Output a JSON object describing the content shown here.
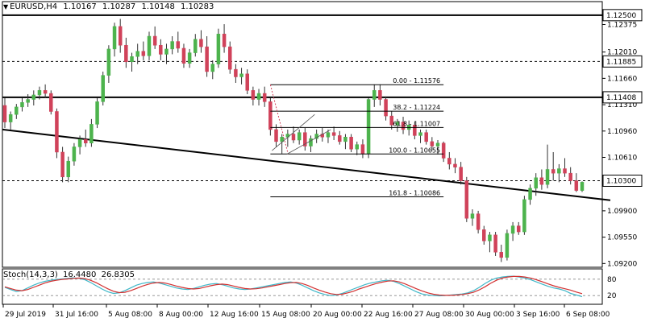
{
  "header": {
    "symbol": "EURUSD,H4",
    "open": "1.10167",
    "high": "1.10287",
    "low": "1.10148",
    "close": "1.10283"
  },
  "stochastic": {
    "name": "Stoch(14,3,3)",
    "main": "16.4480",
    "signal": "26.8305"
  },
  "colors": {
    "bull": "#4db34d",
    "bear": "#d0425a",
    "wick": "#333333",
    "stoch_main": "#3fb7c8",
    "stoch_signal": "#d23030",
    "trend_line": "#000000"
  },
  "chart_data": [
    {
      "type": "candlestick",
      "title": "EURUSD,H4",
      "ylim": [
        1.0915,
        1.1268
      ],
      "y_ticks": [
        "1.12500",
        "1.12375",
        "1.12010",
        "1.11885",
        "1.11660",
        "1.11408",
        "1.11310",
        "1.10960",
        "1.10610",
        "1.10300",
        "1.09900",
        "1.09550",
        "1.09200"
      ],
      "x_ticks": [
        "29 Jul 2019",
        "31 Jul 16:00",
        "5 Aug 08:00",
        "8 Aug 00:00",
        "12 Aug 16:00",
        "15 Aug 08:00",
        "20 Aug 00:00",
        "22 Aug 16:00",
        "27 Aug 08:00",
        "30 Aug 00:00",
        "3 Sep 16:00",
        "6 Sep 08:00"
      ],
      "grid": false,
      "horizontal_levels": [
        {
          "price": 1.125,
          "label": "1.12500",
          "style": "solid"
        },
        {
          "price": 1.11885,
          "label": "1.11885",
          "style": "dashed"
        },
        {
          "price": 1.11408,
          "label": "1.11408",
          "style": "solid"
        },
        {
          "price": 1.103,
          "label": "1.10300",
          "style": "dashed"
        }
      ],
      "fibonacci": [
        {
          "label": "0.00 - 1.11576",
          "price": 1.11576
        },
        {
          "label": "38.2 - 1.11224",
          "price": 1.11224
        },
        {
          "label": "61.8 - 1.11007",
          "price": 1.11007
        },
        {
          "label": "100.0 - 1.10655",
          "price": 1.10655
        },
        {
          "label": "161.8 - 1.10086",
          "price": 1.10086
        }
      ],
      "trendline": {
        "from_price": 1.1098,
        "to_price": 1.1004
      },
      "candles": [
        [
          1.113,
          1.114,
          1.11,
          1.1108
        ],
        [
          1.1108,
          1.1122,
          1.1098,
          1.1118
        ],
        [
          1.1118,
          1.1132,
          1.1112,
          1.1128
        ],
        [
          1.1128,
          1.114,
          1.1122,
          1.1134
        ],
        [
          1.1134,
          1.1145,
          1.1128,
          1.1138
        ],
        [
          1.1138,
          1.115,
          1.113,
          1.1144
        ],
        [
          1.1144,
          1.1155,
          1.1138,
          1.115
        ],
        [
          1.115,
          1.1158,
          1.114,
          1.1146
        ],
        [
          1.1146,
          1.115,
          1.1118,
          1.1122
        ],
        [
          1.1122,
          1.1126,
          1.106,
          1.1068
        ],
        [
          1.1068,
          1.1075,
          1.1028,
          1.1035
        ],
        [
          1.1035,
          1.1062,
          1.1028,
          1.1056
        ],
        [
          1.1056,
          1.108,
          1.105,
          1.1075
        ],
        [
          1.1075,
          1.109,
          1.1065,
          1.1085
        ],
        [
          1.1085,
          1.1098,
          1.1075,
          1.108
        ],
        [
          1.108,
          1.1112,
          1.1075,
          1.1105
        ],
        [
          1.1105,
          1.114,
          1.11,
          1.1135
        ],
        [
          1.1135,
          1.1175,
          1.113,
          1.117
        ],
        [
          1.117,
          1.121,
          1.116,
          1.1205
        ],
        [
          1.1205,
          1.124,
          1.1195,
          1.1235
        ],
        [
          1.1235,
          1.1245,
          1.12,
          1.121
        ],
        [
          1.121,
          1.122,
          1.118,
          1.1188
        ],
        [
          1.1188,
          1.12,
          1.1175,
          1.1195
        ],
        [
          1.1195,
          1.1212,
          1.1185,
          1.1202
        ],
        [
          1.1202,
          1.1215,
          1.119,
          1.1196
        ],
        [
          1.1196,
          1.1228,
          1.119,
          1.1222
        ],
        [
          1.1222,
          1.1235,
          1.1205,
          1.121
        ],
        [
          1.121,
          1.1218,
          1.119,
          1.1198
        ],
        [
          1.1198,
          1.1212,
          1.1185,
          1.1205
        ],
        [
          1.1205,
          1.1222,
          1.1198,
          1.1215
        ],
        [
          1.1215,
          1.1228,
          1.12,
          1.1206
        ],
        [
          1.1206,
          1.1212,
          1.118,
          1.1186
        ],
        [
          1.1186,
          1.1205,
          1.118,
          1.12
        ],
        [
          1.12,
          1.1225,
          1.1195,
          1.1218
        ],
        [
          1.1218,
          1.123,
          1.12,
          1.1208
        ],
        [
          1.1208,
          1.1222,
          1.1168,
          1.1175
        ],
        [
          1.1175,
          1.119,
          1.1165,
          1.1185
        ],
        [
          1.1185,
          1.1232,
          1.118,
          1.1225
        ],
        [
          1.1225,
          1.1238,
          1.12,
          1.1208
        ],
        [
          1.1208,
          1.1215,
          1.1172,
          1.1178
        ],
        [
          1.1178,
          1.1185,
          1.116,
          1.1168
        ],
        [
          1.1168,
          1.118,
          1.1158,
          1.1172
        ],
        [
          1.1172,
          1.1178,
          1.1145,
          1.115
        ],
        [
          1.115,
          1.1155,
          1.113,
          1.1138
        ],
        [
          1.1138,
          1.1152,
          1.113,
          1.1146
        ],
        [
          1.1146,
          1.1155,
          1.1128,
          1.1135
        ],
        [
          1.1135,
          1.114,
          1.109,
          1.1098
        ],
        [
          1.1098,
          1.1105,
          1.1075,
          1.1082
        ],
        [
          1.1082,
          1.1092,
          1.1066,
          1.1088
        ],
        [
          1.1088,
          1.1098,
          1.1075,
          1.1092
        ],
        [
          1.1092,
          1.1102,
          1.108,
          1.1084
        ],
        [
          1.1084,
          1.1098,
          1.1078,
          1.1094
        ],
        [
          1.1094,
          1.11,
          1.107,
          1.1076
        ],
        [
          1.1076,
          1.109,
          1.1068,
          1.1086
        ],
        [
          1.1086,
          1.1098,
          1.108,
          1.1092
        ],
        [
          1.1092,
          1.11,
          1.1082,
          1.1088
        ],
        [
          1.1088,
          1.1098,
          1.108,
          1.1094
        ],
        [
          1.1094,
          1.1102,
          1.1084,
          1.109
        ],
        [
          1.109,
          1.1096,
          1.1078,
          1.1082
        ],
        [
          1.1082,
          1.1092,
          1.1072,
          1.1088
        ],
        [
          1.1088,
          1.1092,
          1.1068,
          1.1072
        ],
        [
          1.1072,
          1.1082,
          1.1064,
          1.1078
        ],
        [
          1.1078,
          1.1085,
          1.106,
          1.1066
        ],
        [
          1.1066,
          1.114,
          1.106,
          1.1138
        ],
        [
          1.1138,
          1.1158,
          1.1128,
          1.115
        ],
        [
          1.115,
          1.1158,
          1.113,
          1.1138
        ],
        [
          1.1138,
          1.1142,
          1.111,
          1.1116
        ],
        [
          1.1116,
          1.1122,
          1.1098,
          1.1104
        ],
        [
          1.1104,
          1.1112,
          1.1095,
          1.1108
        ],
        [
          1.1108,
          1.1115,
          1.1092,
          1.1098
        ],
        [
          1.1098,
          1.111,
          1.109,
          1.1104
        ],
        [
          1.1104,
          1.1108,
          1.1085,
          1.109
        ],
        [
          1.109,
          1.1098,
          1.108,
          1.1094
        ],
        [
          1.1094,
          1.1098,
          1.1078,
          1.1082
        ],
        [
          1.1082,
          1.1088,
          1.107,
          1.1076
        ],
        [
          1.1076,
          1.1084,
          1.1065,
          1.108
        ],
        [
          1.108,
          1.1082,
          1.1055,
          1.106
        ],
        [
          1.106,
          1.1068,
          1.1045,
          1.1052
        ],
        [
          1.1052,
          1.106,
          1.104,
          1.1048
        ],
        [
          1.1048,
          1.1055,
          1.1025,
          1.103
        ],
        [
          1.103,
          1.1035,
          1.0975,
          1.098
        ],
        [
          1.098,
          1.0992,
          1.097,
          1.0986
        ],
        [
          1.0986,
          1.099,
          1.096,
          1.0965
        ],
        [
          1.0965,
          1.097,
          1.0945,
          1.095
        ],
        [
          1.095,
          1.0962,
          1.0935,
          1.0958
        ],
        [
          1.0958,
          1.0962,
          1.093,
          1.0935
        ],
        [
          1.0935,
          1.0945,
          1.0922,
          1.0928
        ],
        [
          1.0928,
          1.0965,
          1.0924,
          1.096
        ],
        [
          1.096,
          1.0975,
          1.095,
          1.097
        ],
        [
          1.097,
          1.0975,
          1.0958,
          1.0962
        ],
        [
          1.0962,
          1.101,
          1.0958,
          1.1005
        ],
        [
          1.1005,
          1.1025,
          1.0998,
          1.102
        ],
        [
          1.102,
          1.104,
          1.101,
          1.1034
        ],
        [
          1.1034,
          1.1045,
          1.1018,
          1.1025
        ],
        [
          1.1025,
          1.1078,
          1.102,
          1.1045
        ],
        [
          1.1045,
          1.1068,
          1.103,
          1.104
        ],
        [
          1.104,
          1.1052,
          1.1028,
          1.1046
        ],
        [
          1.1046,
          1.106,
          1.1035,
          1.104
        ],
        [
          1.104,
          1.1048,
          1.1025,
          1.103
        ],
        [
          1.103,
          1.104,
          1.1015,
          1.1017
        ],
        [
          1.1017,
          1.1029,
          1.1015,
          1.1028
        ]
      ]
    },
    {
      "type": "line",
      "title": "Stoch(14,3,3)",
      "ylim": [
        0,
        100
      ],
      "y_ticks": [
        "80",
        "20"
      ],
      "series": [
        {
          "values": [
            50,
            42,
            35,
            38,
            48,
            58,
            66,
            72,
            76,
            79,
            81,
            83,
            85,
            83,
            78,
            68,
            56,
            44,
            34,
            28,
            30,
            38,
            48,
            58,
            64,
            68,
            70,
            66,
            60,
            54,
            48,
            44,
            42,
            46,
            52,
            58,
            62,
            64,
            60,
            54,
            48,
            44,
            42,
            44,
            48,
            52,
            56,
            60,
            64,
            68,
            70,
            66,
            58,
            48,
            38,
            30,
            24,
            20,
            22,
            28,
            36,
            44,
            52,
            60,
            66,
            70,
            74,
            76,
            72,
            64,
            54,
            44,
            34,
            26,
            22,
            20,
            19,
            20,
            22,
            24,
            26,
            30,
            38,
            50,
            64,
            76,
            84,
            88,
            90,
            91,
            88,
            84,
            78,
            70,
            62,
            54,
            48,
            44,
            38,
            28,
            22,
            16
          ]
        },
        {
          "values": [
            52,
            46,
            40,
            38,
            42,
            50,
            58,
            66,
            72,
            76,
            79,
            81,
            83,
            84,
            82,
            76,
            67,
            56,
            45,
            36,
            31,
            32,
            38,
            46,
            54,
            61,
            66,
            68,
            66,
            61,
            55,
            50,
            46,
            44,
            46,
            51,
            56,
            60,
            62,
            60,
            55,
            50,
            46,
            44,
            45,
            48,
            52,
            56,
            60,
            64,
            67,
            68,
            64,
            57,
            48,
            40,
            33,
            27,
            24,
            25,
            30,
            36,
            44,
            51,
            58,
            64,
            69,
            73,
            74,
            70,
            63,
            54,
            45,
            37,
            30,
            25,
            22,
            21,
            21,
            22,
            24,
            27,
            32,
            41,
            52,
            65,
            76,
            84,
            88,
            90,
            90,
            88,
            84,
            78,
            71,
            63,
            56,
            50,
            45,
            40,
            33,
            27
          ]
        }
      ]
    }
  ]
}
